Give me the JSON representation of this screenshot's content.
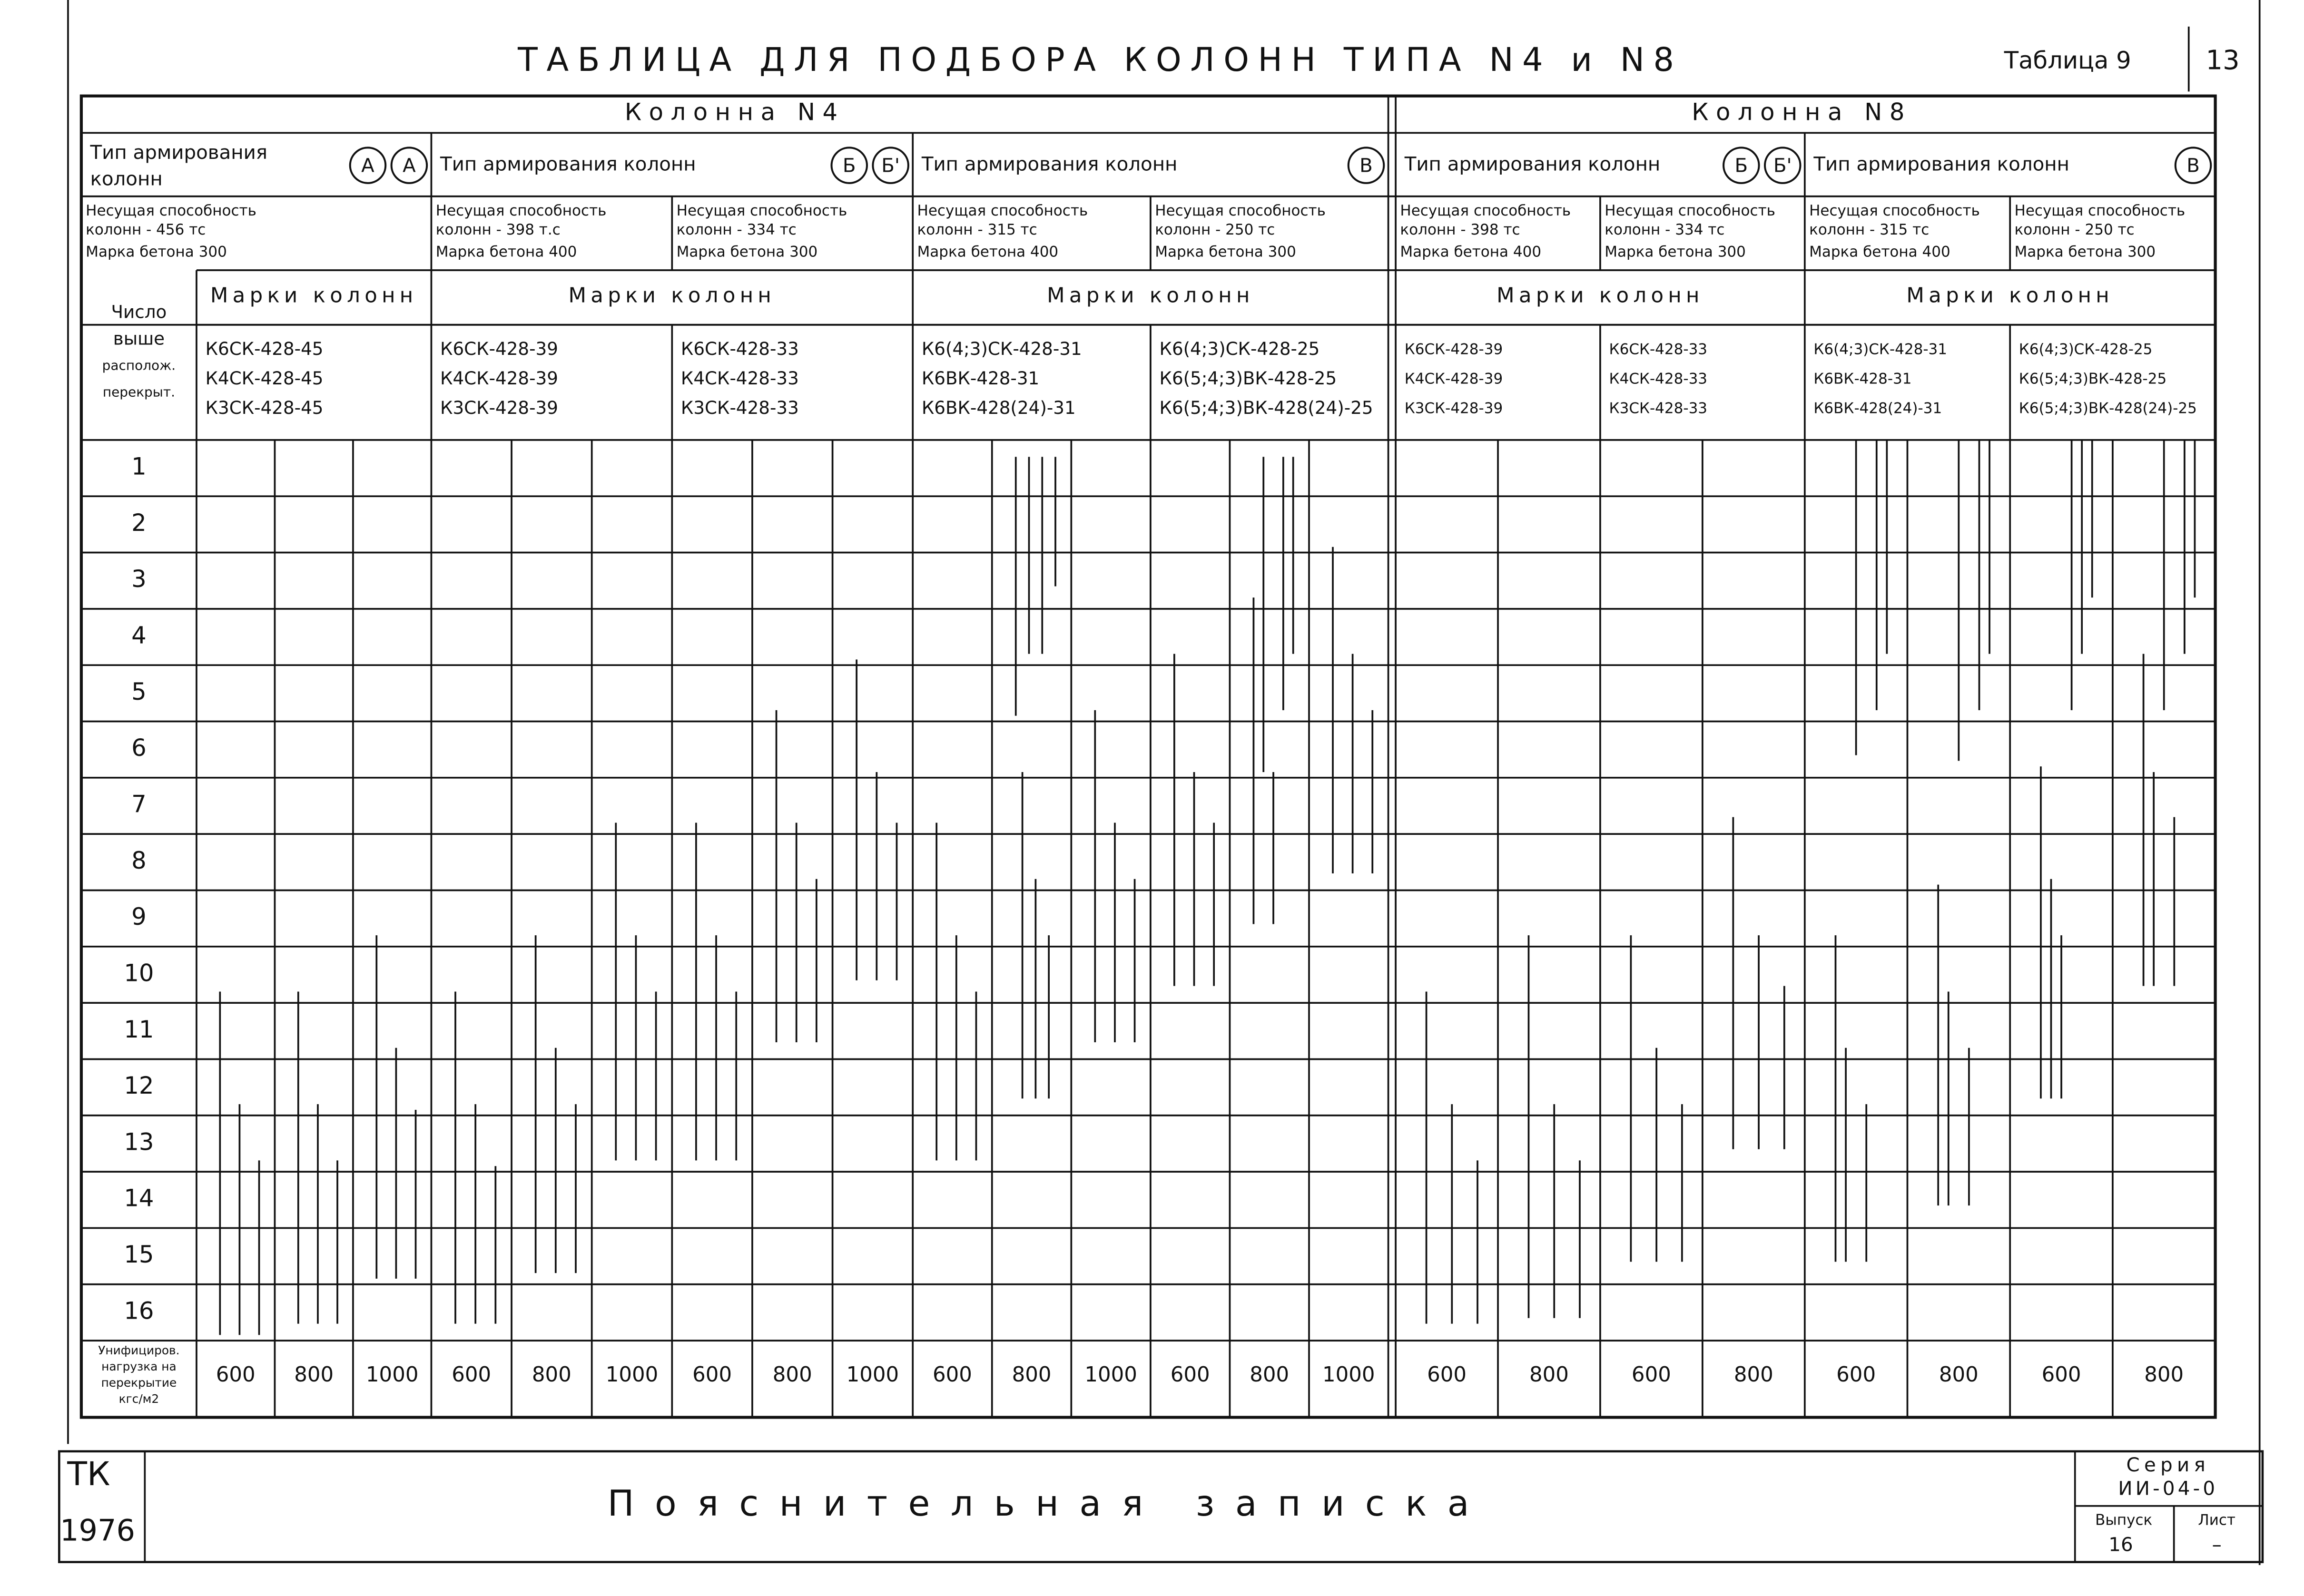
{
  "header": {
    "title": "ТАБЛИЦА ДЛЯ ПОДБОРА КОЛОНН ТИПА N4 и N8",
    "table_no": "Таблица 9",
    "page": "13"
  },
  "table": {
    "row_header": [
      "Число",
      "выше",
      "располож.",
      "перекрыт."
    ],
    "floors": [
      "1",
      "2",
      "3",
      "4",
      "5",
      "6",
      "7",
      "8",
      "9",
      "10",
      "11",
      "12",
      "13",
      "14",
      "15",
      "16"
    ],
    "load_header": [
      "Унифициров.",
      "нагрузка на",
      "перекрытие",
      "кгс/м2"
    ],
    "groups": [
      {
        "title": "Колонна N4",
        "sections": [
          {
            "type": [
              "Тип армирования",
              "колонн"
            ],
            "badges": [
              "А",
              "А"
            ],
            "marks_title": "Марки колонн",
            "subs": [
              {
                "capacity": [
                  "Несущая способность",
                  "колонн - 456 тс"
                ],
                "concrete": "Марка бетона 300",
                "marks": [
                  "К6СК-428-45",
                  "К4СК-428-45",
                  "К3СК-428-45"
                ],
                "columns": [
                  {
                    "load": "600",
                    "bars": [
                      [
                        9.8,
                        15.9
                      ],
                      [
                        11.8,
                        15.9
                      ],
                      [
                        12.8,
                        15.9
                      ]
                    ]
                  },
                  {
                    "load": "800",
                    "bars": [
                      [
                        9.8,
                        15.7
                      ],
                      [
                        11.8,
                        15.7
                      ],
                      [
                        12.8,
                        15.7
                      ]
                    ]
                  },
                  {
                    "load": "1000",
                    "bars": [
                      [
                        8.8,
                        14.9
                      ],
                      [
                        10.8,
                        14.9
                      ],
                      [
                        11.9,
                        14.9
                      ]
                    ]
                  }
                ]
              }
            ]
          },
          {
            "type": [
              "Тип армирования колонн"
            ],
            "badges": [
              "Б",
              "Б'"
            ],
            "marks_title": "Марки колонн",
            "subs": [
              {
                "capacity": [
                  "Несущая способность",
                  "колонн - 398 т.с"
                ],
                "concrete": "Марка бетона 400",
                "marks": [
                  "К6СК-428-39",
                  "К4СК-428-39",
                  "К3СК-428-39"
                ],
                "columns": [
                  {
                    "load": "600",
                    "bars": [
                      [
                        9.8,
                        15.7
                      ],
                      [
                        11.8,
                        15.7
                      ],
                      [
                        12.9,
                        15.7
                      ]
                    ]
                  },
                  {
                    "load": "800",
                    "bars": [
                      [
                        8.8,
                        14.8
                      ],
                      [
                        10.8,
                        14.8
                      ],
                      [
                        11.8,
                        14.8
                      ]
                    ]
                  },
                  {
                    "load": "1000",
                    "bars": [
                      [
                        6.8,
                        12.8
                      ],
                      [
                        8.8,
                        12.8
                      ],
                      [
                        9.8,
                        12.8
                      ]
                    ]
                  }
                ]
              },
              {
                "capacity": [
                  "Несущая способность",
                  "колонн - 334 тс"
                ],
                "concrete": "Марка бетона 300",
                "marks": [
                  "К6СК-428-33",
                  "К4СК-428-33",
                  "К3СК-428-33"
                ],
                "columns": [
                  {
                    "load": "600",
                    "bars": [
                      [
                        6.8,
                        12.8
                      ],
                      [
                        8.8,
                        12.8
                      ],
                      [
                        9.8,
                        12.8
                      ]
                    ]
                  },
                  {
                    "load": "800",
                    "bars": [
                      [
                        4.8,
                        10.7
                      ],
                      [
                        6.8,
                        10.7
                      ],
                      [
                        7.8,
                        10.7
                      ]
                    ]
                  },
                  {
                    "load": "1000",
                    "bars": [
                      [
                        3.9,
                        9.6
                      ],
                      [
                        5.9,
                        9.6
                      ],
                      [
                        6.8,
                        9.6
                      ]
                    ]
                  }
                ]
              }
            ]
          },
          {
            "type": [
              "Тип армирования колонн"
            ],
            "badges": [
              "В"
            ],
            "marks_title": "Марки колонн",
            "subs": [
              {
                "capacity": [
                  "Несущая способность",
                  "колонн - 315 тс"
                ],
                "concrete": "Марка бетона 400",
                "marks": [
                  "К6(4;3)СК-428-31",
                  "К6ВК-428-31",
                  "К6ВК-428(24)-31"
                ],
                "columns": [
                  {
                    "load": "600",
                    "bars": [
                      [
                        6.8,
                        12.8
                      ],
                      [
                        8.8,
                        12.8
                      ],
                      [
                        9.8,
                        12.8
                      ]
                    ]
                  },
                  {
                    "load": "800",
                    "bars": [
                      [
                        0.3,
                        4.9
                      ],
                      [
                        5.9,
                        11.7
                      ],
                      [
                        0.3,
                        3.8
                      ],
                      [
                        7.8,
                        11.7
                      ],
                      [
                        0.3,
                        3.8
                      ],
                      [
                        8.8,
                        11.7
                      ],
                      [
                        0.3,
                        2.6
                      ]
                    ]
                  },
                  {
                    "load": "1000",
                    "bars": [
                      [
                        4.8,
                        10.7
                      ],
                      [
                        6.8,
                        10.7
                      ],
                      [
                        7.8,
                        10.7
                      ]
                    ]
                  }
                ]
              },
              {
                "capacity": [
                  "Несущая способность",
                  "колонн - 250 тс"
                ],
                "concrete": "Марка бетона 300",
                "marks": [
                  "К6(4;3)СК-428-25",
                  "К6(5;4;3)ВК-428-25",
                  "К6(5;4;3)ВК-428(24)-25"
                ],
                "columns": [
                  {
                    "load": "600",
                    "bars": [
                      [
                        3.8,
                        9.7
                      ],
                      [
                        5.9,
                        9.7
                      ],
                      [
                        6.8,
                        9.7
                      ]
                    ]
                  },
                  {
                    "load": "800",
                    "bars": [
                      [
                        2.8,
                        8.6
                      ],
                      [
                        0.3,
                        5.9
                      ],
                      [
                        5.9,
                        8.6
                      ],
                      [
                        0.3,
                        4.8
                      ],
                      [
                        0.3,
                        3.8
                      ]
                    ]
                  },
                  {
                    "load": "1000",
                    "bars": [
                      [
                        1.9,
                        7.7
                      ],
                      [
                        3.8,
                        7.7
                      ],
                      [
                        4.8,
                        7.7
                      ]
                    ]
                  }
                ]
              }
            ]
          }
        ]
      },
      {
        "title": "Колонна N8",
        "sections": [
          {
            "type": [
              "Тип армирования колонн"
            ],
            "badges": [
              "Б",
              "Б'"
            ],
            "marks_title": "Марки колонн",
            "subs": [
              {
                "capacity": [
                  "Несущая способность",
                  "колонн - 398 тс"
                ],
                "concrete": "Марка бетона 400",
                "marks": [
                  "К6СК-428-39",
                  "К4СК-428-39",
                  "К3СК-428-39"
                ],
                "columns": [
                  {
                    "load": "600",
                    "bars": [
                      [
                        9.8,
                        15.7
                      ],
                      [
                        11.8,
                        15.7
                      ],
                      [
                        12.8,
                        15.7
                      ]
                    ]
                  },
                  {
                    "load": "800",
                    "bars": [
                      [
                        8.8,
                        15.6
                      ],
                      [
                        11.8,
                        15.6
                      ],
                      [
                        12.8,
                        15.6
                      ]
                    ]
                  }
                ]
              },
              {
                "capacity": [
                  "Несущая способность",
                  "колонн - 334 тс"
                ],
                "concrete": "Марка бетона 300",
                "marks": [
                  "К6СК-428-33",
                  "К4СК-428-33",
                  "К3СК-428-33"
                ],
                "columns": [
                  {
                    "load": "600",
                    "bars": [
                      [
                        8.8,
                        14.6
                      ],
                      [
                        10.8,
                        14.6
                      ],
                      [
                        11.8,
                        14.6
                      ]
                    ]
                  },
                  {
                    "load": "800",
                    "bars": [
                      [
                        6.7,
                        12.6
                      ],
                      [
                        8.8,
                        12.6
                      ],
                      [
                        9.7,
                        12.6
                      ]
                    ]
                  }
                ]
              }
            ]
          },
          {
            "type": [
              "Тип армирования колонн"
            ],
            "badges": [
              "В"
            ],
            "marks_title": "Марки колонн",
            "subs": [
              {
                "capacity": [
                  "Несущая способность",
                  "колонн - 315 тс"
                ],
                "concrete": "Марка бетона 400",
                "marks": [
                  "К6(4;3)СК-428-31",
                  "К6ВК-428-31",
                  "К6ВК-428(24)-31"
                ],
                "columns": [
                  {
                    "load": "600",
                    "bars": [
                      [
                        8.8,
                        14.6
                      ],
                      [
                        10.8,
                        14.6
                      ],
                      [
                        0,
                        5.6
                      ],
                      [
                        11.8,
                        14.6
                      ],
                      [
                        0,
                        4.8
                      ],
                      [
                        0,
                        3.8
                      ]
                    ]
                  },
                  {
                    "load": "800",
                    "bars": [
                      [
                        7.9,
                        13.6
                      ],
                      [
                        9.8,
                        13.6
                      ],
                      [
                        0,
                        5.7
                      ],
                      [
                        10.8,
                        13.6
                      ],
                      [
                        0,
                        4.8
                      ],
                      [
                        0,
                        3.8
                      ]
                    ]
                  }
                ]
              },
              {
                "capacity": [
                  "Несущая способность",
                  "колонн - 250 тс"
                ],
                "concrete": "Марка бетона 300",
                "marks": [
                  "К6(4;3)СК-428-25",
                  "К6(5;4;3)ВК-428-25",
                  "К6(5;4;3)ВК-428(24)-25"
                ],
                "columns": [
                  {
                    "load": "600",
                    "bars": [
                      [
                        5.8,
                        11.7
                      ],
                      [
                        7.8,
                        11.7
                      ],
                      [
                        8.8,
                        11.7
                      ],
                      [
                        0,
                        4.8
                      ],
                      [
                        0,
                        3.8
                      ],
                      [
                        0,
                        2.8
                      ]
                    ]
                  },
                  {
                    "load": "800",
                    "bars": [
                      [
                        3.8,
                        9.7
                      ],
                      [
                        5.9,
                        9.7
                      ],
                      [
                        0,
                        4.8
                      ],
                      [
                        6.7,
                        9.7
                      ],
                      [
                        0,
                        3.8
                      ],
                      [
                        0,
                        2.8
                      ]
                    ]
                  }
                ]
              }
            ]
          }
        ]
      }
    ]
  },
  "footer": {
    "code": "ТК",
    "year": "1976",
    "title": "Пояснительная записка",
    "series_label": "Серия",
    "series": "ИИ-04-0",
    "issue_label": "Выпуск",
    "issue": "16",
    "sheet_label": "Лист",
    "sheet": "–"
  }
}
